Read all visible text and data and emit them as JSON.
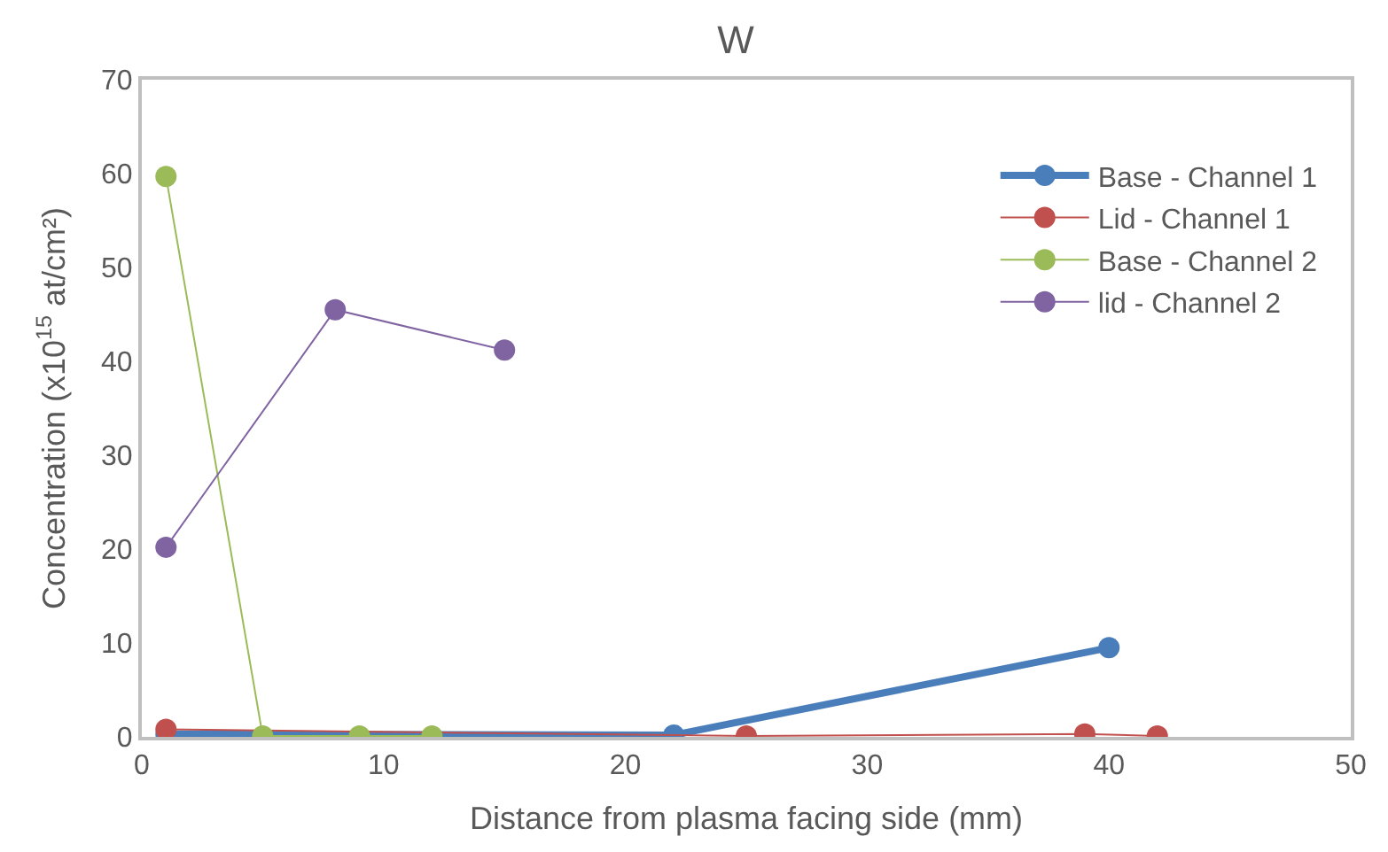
{
  "chart_data": {
    "type": "line",
    "title": "W",
    "xlabel": "Distance from plasma facing side (mm)",
    "ylabel": "Concentration (x10$^{15}$ at/cm²)",
    "xlim": [
      0,
      50
    ],
    "xticks": [
      0,
      10,
      20,
      30,
      40,
      50
    ],
    "ylim": [
      0,
      70
    ],
    "yticks": [
      0,
      10,
      20,
      30,
      40,
      50,
      60,
      70
    ],
    "legend": "top right",
    "marker": "circle",
    "line_style": "solid",
    "series": [
      {
        "name": "Base - Channel 1",
        "color": "#4a7ebb",
        "x": [
          1,
          22,
          40
        ],
        "values": [
          0.3,
          0.2,
          9.5
        ]
      },
      {
        "name": "Lid - Channel 1",
        "color": "#c0504d",
        "x": [
          1,
          25,
          39,
          42
        ],
        "values": [
          0.8,
          0.1,
          0.3,
          0.1
        ]
      },
      {
        "name": "Base - Channel 2",
        "color": "#9bbb59",
        "x": [
          1,
          5,
          9,
          12
        ],
        "values": [
          59.7,
          0.1,
          0.1,
          0.1
        ]
      },
      {
        "name": "lid - Channel 2",
        "color": "#8064a2",
        "x": [
          1,
          8,
          15
        ],
        "values": [
          20.2,
          45.5,
          41.2
        ]
      }
    ]
  }
}
